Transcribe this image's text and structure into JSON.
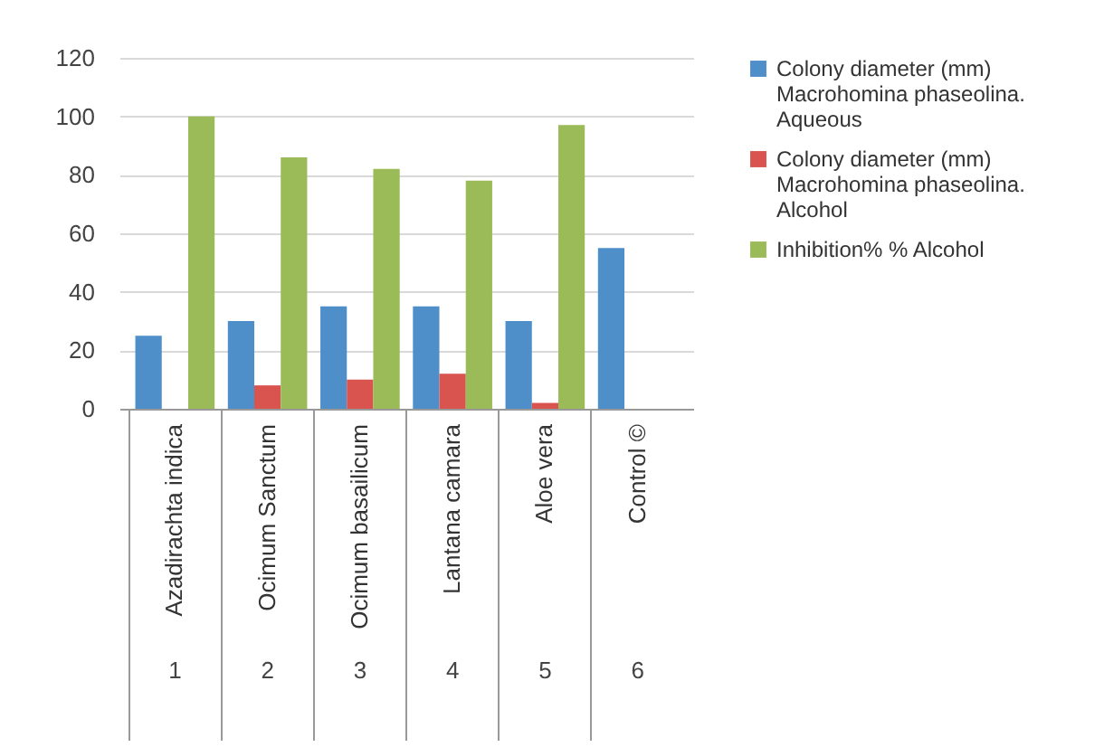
{
  "chart_data": {
    "type": "bar",
    "categories": [
      "Azadirachta indica",
      "Ocimum Sanctum",
      "Ocimum basailicum",
      "Lantana camara",
      "Aloe vera",
      "Control ©"
    ],
    "series": [
      {
        "name": "Colony diameter (mm) Macrohomina phaseolina. Aqueous",
        "color": "#4f8fc9",
        "values": [
          25,
          30,
          35,
          35,
          30,
          55
        ]
      },
      {
        "name": "Colony diameter (mm) Macrohomina phaseolina. Alcohol",
        "color": "#d9534f",
        "values": [
          null,
          8,
          10,
          12,
          2,
          null
        ]
      },
      {
        "name": "Inhibition% % Alcohol",
        "color": "#9bbb59",
        "values": [
          100,
          86,
          82,
          78,
          97,
          null
        ]
      }
    ],
    "annotations": [
      "1",
      "2",
      "3",
      "4",
      "5",
      "6"
    ],
    "ylim": [
      0,
      120
    ],
    "yticks": [
      0,
      20,
      40,
      60,
      80,
      100,
      120
    ],
    "grid": "y",
    "legend": "right"
  }
}
